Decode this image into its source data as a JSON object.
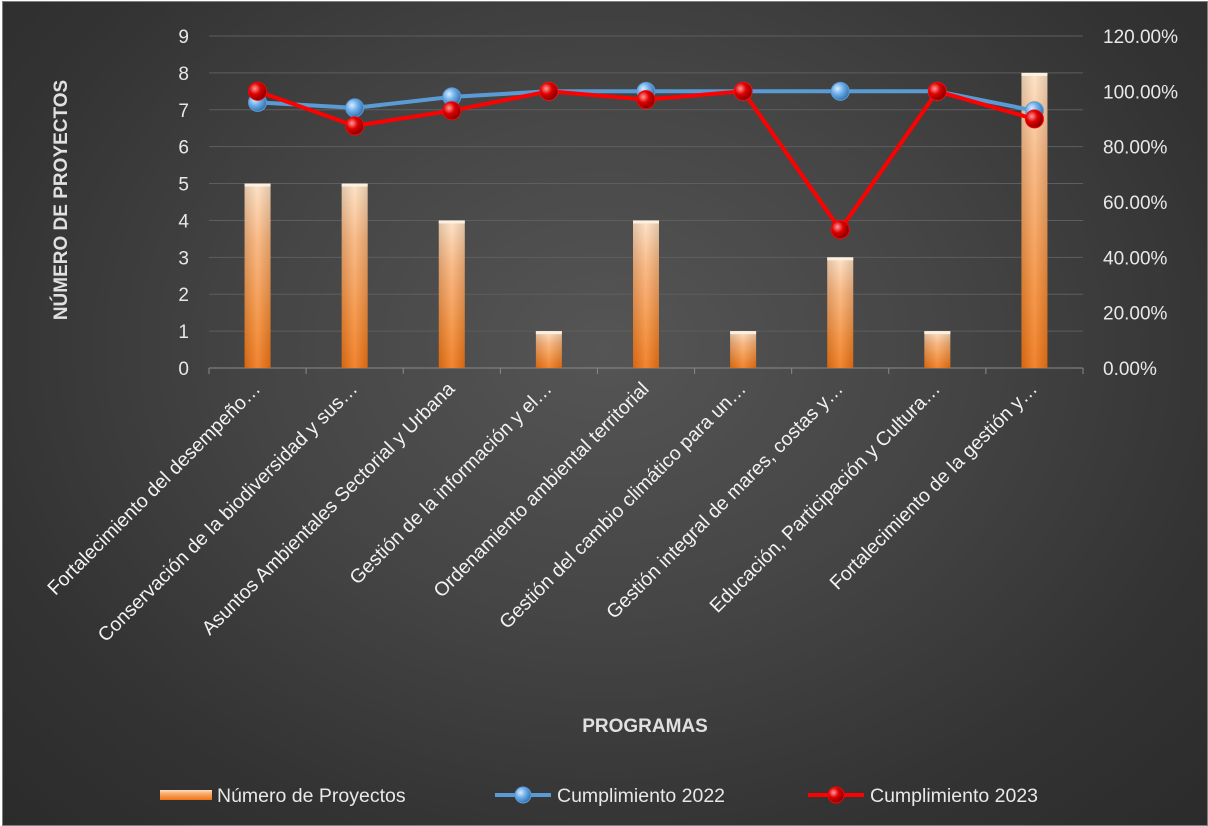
{
  "chart_data": {
    "type": "bar",
    "xlabel": "PROGRAMAS",
    "ylabel": "NÚMERO DE PROYECTOS",
    "categories": [
      "Fortalecimiento del desempeño…",
      "Conservación de la biodiversidad y sus…",
      "Asuntos Ambientales Sectorial y Urbana",
      "Gestión de la información y el…",
      "Ordenamiento ambiental territorial",
      "Gestión del cambio climático para un…",
      "Gestión integral de mares, costas y…",
      "Educación, Participación y Cultura…",
      "Fortalecimiento de la gestión y…"
    ],
    "series": [
      {
        "name": "Número de Proyectos",
        "type": "bar",
        "axis": "left",
        "values": [
          5,
          5,
          4,
          1,
          4,
          1,
          3,
          1,
          8
        ]
      },
      {
        "name": "Cumplimiento 2022",
        "type": "line",
        "axis": "right",
        "values": [
          0.96,
          0.94,
          0.98,
          1.0,
          1.0,
          1.0,
          1.0,
          1.0,
          0.93
        ]
      },
      {
        "name": "Cumplimiento 2023",
        "type": "line",
        "axis": "right",
        "values": [
          1.0,
          0.875,
          0.93,
          1.0,
          0.97,
          1.0,
          0.5,
          1.0,
          0.9
        ]
      }
    ],
    "ylim": [
      0,
      9
    ],
    "y_ticks": [
      "0",
      "1",
      "2",
      "3",
      "4",
      "5",
      "6",
      "7",
      "8",
      "9"
    ],
    "y2lim": [
      0,
      1.2
    ],
    "y2_ticks": [
      "0.00%",
      "20.00%",
      "40.00%",
      "60.00%",
      "80.00%",
      "100.00%",
      "120.00%"
    ],
    "grid": true,
    "legend_position": "bottom",
    "colors": {
      "background": "#3f3f3f",
      "bar_top": "#fbd3ad",
      "bar_bottom": "#f07a1a",
      "line_2022": "#5b9bd5",
      "line_2023": "#ff0000",
      "grid": "#5e5e5e",
      "text": "#e8e8e8"
    }
  }
}
